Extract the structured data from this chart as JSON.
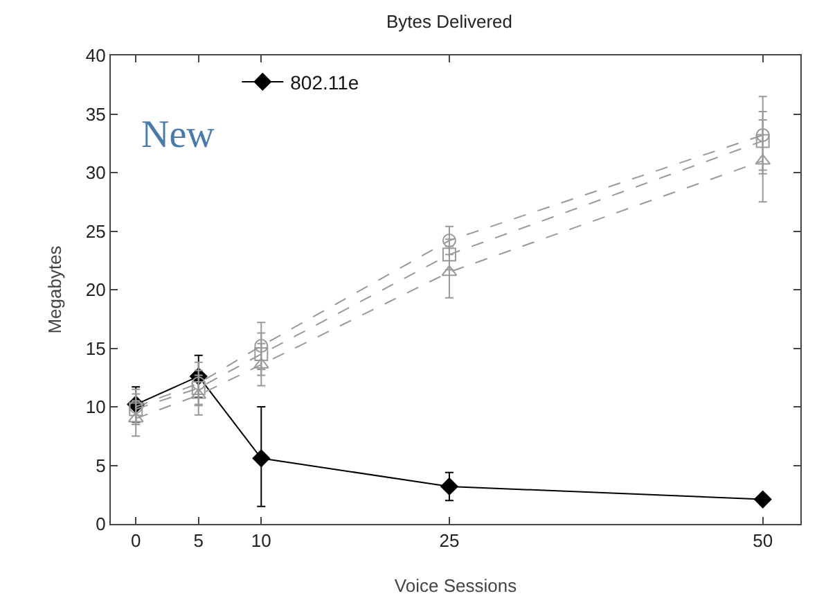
{
  "chart_data": {
    "type": "line",
    "title": "Bytes Delivered",
    "xlabel": "Voice Sessions",
    "ylabel": "Megabytes",
    "x": [
      0,
      5,
      10,
      25,
      50
    ],
    "series": [
      {
        "name": "802.11e",
        "color": "#000000",
        "marker": "diamond",
        "line_style": "solid",
        "values": [
          10.2,
          12.6,
          5.6,
          3.2,
          2.1
        ],
        "errors": [
          1.5,
          1.8,
          [
            1.5,
            10
          ],
          1.2,
          null
        ]
      },
      {
        "color": "#999999",
        "marker": "square",
        "line_style": "dashed",
        "values": [
          9.8,
          11.6,
          14.5,
          23,
          32.7
        ],
        "errors": [
          1.3,
          1.5,
          1.8,
          1.3,
          2.5
        ]
      },
      {
        "color": "#999999",
        "marker": "circle",
        "line_style": "dashed",
        "values": [
          10,
          12,
          15.2,
          24.2,
          33.2
        ],
        "errors": [
          1.5,
          1.8,
          2,
          1.2,
          3.3
        ]
      },
      {
        "color": "#999999",
        "marker": "triangle",
        "line_style": "dashed",
        "values": [
          9,
          11,
          13.6,
          21.5,
          31
        ],
        "errors": [
          1.5,
          1.7,
          1.8,
          2.2,
          3.5
        ]
      }
    ],
    "xlim": [
      -2,
      53
    ],
    "xticks": [
      0,
      5,
      10,
      25,
      50
    ],
    "ylim": [
      0,
      40
    ],
    "yticks": [
      0,
      5,
      10,
      15,
      20,
      25,
      30,
      35,
      40
    ],
    "grid": false,
    "legend": "top left",
    "annotations": [
      "New"
    ]
  }
}
